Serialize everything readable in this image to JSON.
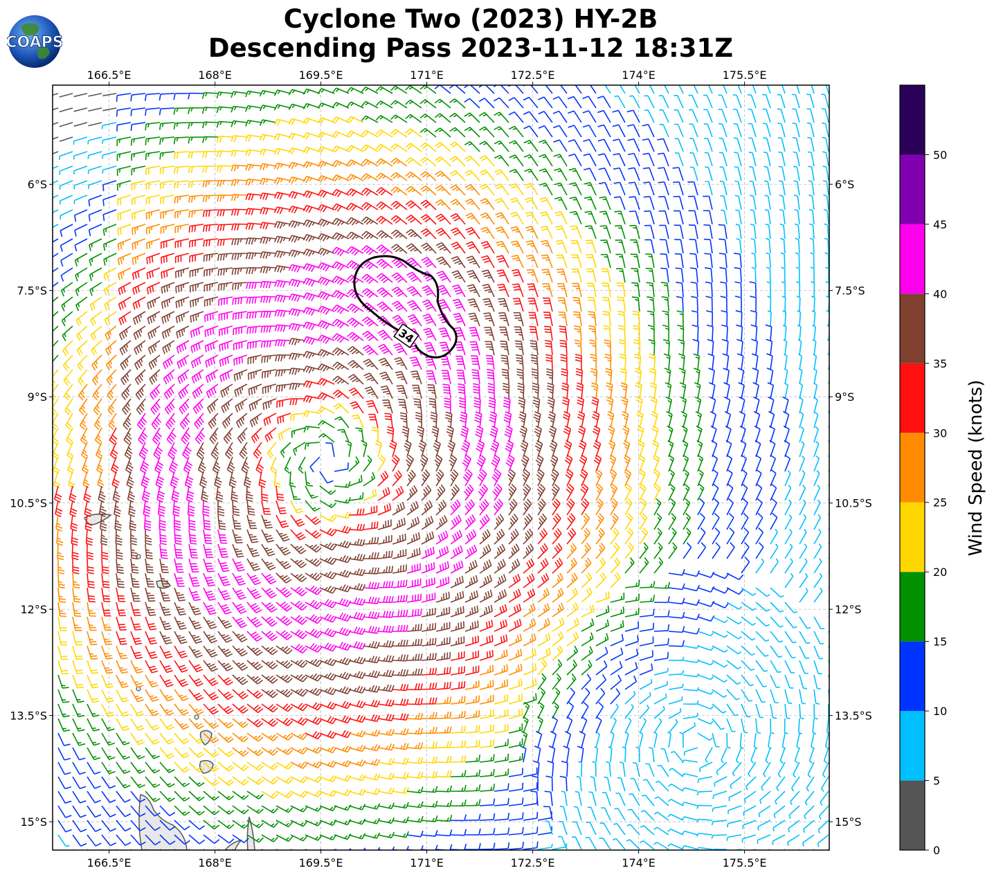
{
  "title": {
    "line1": "Cyclone Two (2023) HY-2B",
    "line2": "Descending Pass 2023-11-12 18:31Z"
  },
  "logo": {
    "text": "COAPS",
    "icon": "globe-icon"
  },
  "map": {
    "lon_range": [
      165.7,
      176.7
    ],
    "lat_range": [
      -15.4,
      -4.6
    ],
    "lon_ticks": [
      "166.5°E",
      "168°E",
      "169.5°E",
      "171°E",
      "172.5°E",
      "174°E",
      "175.5°E"
    ],
    "lon_tick_values": [
      166.5,
      168,
      169.5,
      171,
      172.5,
      174,
      175.5
    ],
    "lat_ticks": [
      "6°S",
      "7.5°S",
      "9°S",
      "10.5°S",
      "12°S",
      "13.5°S",
      "15°S"
    ],
    "lat_tick_values": [
      -6,
      -7.5,
      -9,
      -10.5,
      -12,
      -13.5,
      -15
    ],
    "gridlines": true,
    "contour_label": "34",
    "storm_center": {
      "lon": 169.6,
      "lat": -9.9
    }
  },
  "colorbar": {
    "label": "Wind Speed (knots)",
    "ticks": [
      "0",
      "5",
      "10",
      "15",
      "20",
      "25",
      "30",
      "35",
      "40",
      "45",
      "50"
    ],
    "bins": [
      {
        "min": 0,
        "max": 5,
        "color": "#555555"
      },
      {
        "min": 5,
        "max": 10,
        "color": "#00bfff"
      },
      {
        "min": 10,
        "max": 15,
        "color": "#0033ff"
      },
      {
        "min": 15,
        "max": 20,
        "color": "#009000"
      },
      {
        "min": 20,
        "max": 25,
        "color": "#ffd700"
      },
      {
        "min": 25,
        "max": 30,
        "color": "#ff8c00"
      },
      {
        "min": 30,
        "max": 35,
        "color": "#ff1010"
      },
      {
        "min": 35,
        "max": 40,
        "color": "#804030"
      },
      {
        "min": 40,
        "max": 45,
        "color": "#ff00ee"
      },
      {
        "min": 45,
        "max": 50,
        "color": "#8000b0"
      },
      {
        "min": 50,
        "max": 55,
        "color": "#2a0058"
      }
    ]
  }
}
